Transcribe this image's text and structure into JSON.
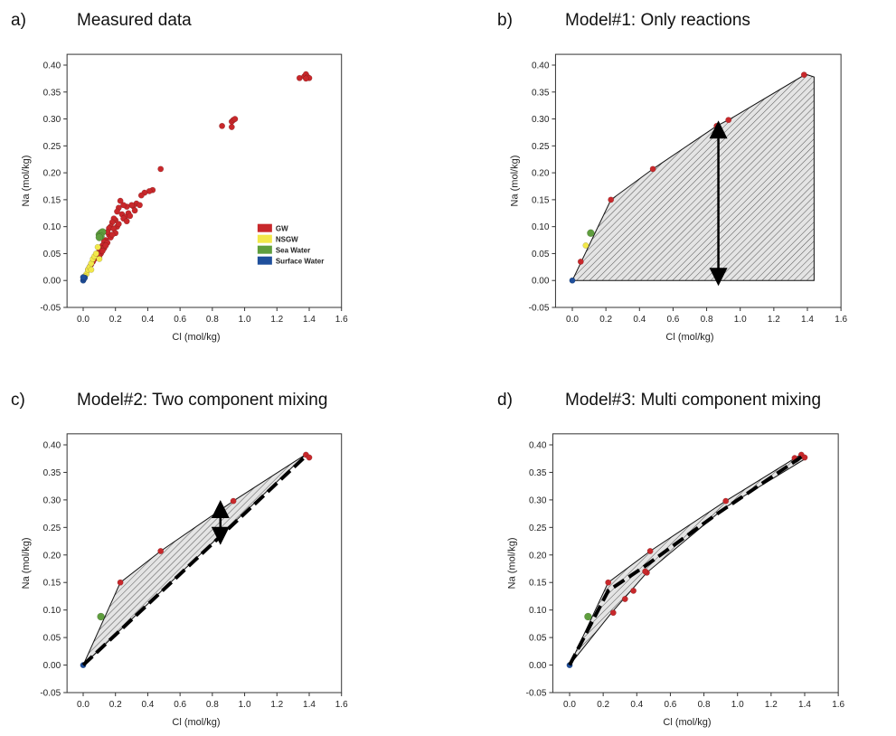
{
  "colors": {
    "GW": "#c8282b",
    "NSGW": "#f2e84a",
    "Sea Water": "#5f9e3e",
    "Surface Water": "#1f4f9c"
  },
  "chart_data": [
    {
      "id": "a",
      "type": "scatter",
      "letter": "a)",
      "title": "Measured data",
      "xlabel": "Cl (mol/kg)",
      "ylabel": "Na (mol/kg)",
      "xlim": [
        -0.1,
        1.6
      ],
      "ylim": [
        -0.05,
        0.42
      ],
      "xticks": [
        "0.0",
        "0.2",
        "0.4",
        "0.6",
        "0.8",
        "1.0",
        "1.2",
        "1.4",
        "1.6"
      ],
      "yticks": [
        "-0.05",
        "0.00",
        "0.05",
        "0.10",
        "0.15",
        "0.20",
        "0.25",
        "0.30",
        "0.35",
        "0.40"
      ],
      "legend_position": "right",
      "legend": [
        "GW",
        "NSGW",
        "Sea Water",
        "Surface Water"
      ],
      "series": [
        {
          "name": "GW",
          "points": [
            [
              1.34,
              0.376
            ],
            [
              1.37,
              0.379
            ],
            [
              1.38,
              0.383
            ],
            [
              1.39,
              0.378
            ],
            [
              1.4,
              0.376
            ],
            [
              1.38,
              0.375
            ],
            [
              0.92,
              0.295
            ],
            [
              0.93,
              0.298
            ],
            [
              0.94,
              0.3
            ],
            [
              0.92,
              0.285
            ],
            [
              0.86,
              0.287
            ],
            [
              0.48,
              0.207
            ],
            [
              0.43,
              0.168
            ],
            [
              0.41,
              0.166
            ],
            [
              0.38,
              0.163
            ],
            [
              0.36,
              0.158
            ],
            [
              0.33,
              0.143
            ],
            [
              0.31,
              0.138
            ],
            [
              0.3,
              0.14
            ],
            [
              0.27,
              0.137
            ],
            [
              0.25,
              0.14
            ],
            [
              0.23,
              0.148
            ],
            [
              0.22,
              0.135
            ],
            [
              0.21,
              0.128
            ],
            [
              0.2,
              0.112
            ],
            [
              0.19,
              0.115
            ],
            [
              0.18,
              0.108
            ],
            [
              0.17,
              0.1
            ],
            [
              0.16,
              0.097
            ],
            [
              0.16,
              0.085
            ],
            [
              0.15,
              0.09
            ],
            [
              0.14,
              0.075
            ],
            [
              0.13,
              0.072
            ],
            [
              0.12,
              0.065
            ],
            [
              0.11,
              0.06
            ],
            [
              0.1,
              0.055
            ],
            [
              0.09,
              0.05
            ],
            [
              0.08,
              0.045
            ],
            [
              0.07,
              0.04
            ],
            [
              0.06,
              0.035
            ],
            [
              0.05,
              0.03
            ],
            [
              0.04,
              0.025
            ],
            [
              0.03,
              0.02
            ],
            [
              0.28,
              0.125
            ],
            [
              0.32,
              0.13
            ],
            [
              0.24,
              0.123
            ],
            [
              0.26,
              0.118
            ],
            [
              0.29,
              0.12
            ],
            [
              0.35,
              0.14
            ],
            [
              0.21,
              0.1
            ],
            [
              0.19,
              0.096
            ],
            [
              0.22,
              0.105
            ],
            [
              0.17,
              0.08
            ],
            [
              0.15,
              0.07
            ],
            [
              0.13,
              0.06
            ],
            [
              0.11,
              0.05
            ],
            [
              0.25,
              0.115
            ],
            [
              0.27,
              0.11
            ],
            [
              0.2,
              0.088
            ],
            [
              0.18,
              0.085
            ],
            [
              0.14,
              0.065
            ],
            [
              0.12,
              0.055
            ],
            [
              0.1,
              0.045
            ]
          ]
        },
        {
          "name": "NSGW",
          "points": [
            [
              0.02,
              0.012
            ],
            [
              0.03,
              0.02
            ],
            [
              0.04,
              0.025
            ],
            [
              0.05,
              0.032
            ],
            [
              0.06,
              0.04
            ],
            [
              0.07,
              0.045
            ],
            [
              0.09,
              0.062
            ],
            [
              0.05,
              0.02
            ],
            [
              0.01,
              0.008
            ],
            [
              0.1,
              0.04
            ],
            [
              0.08,
              0.05
            ]
          ]
        },
        {
          "name": "Sea Water",
          "points": [
            [
              0.1,
              0.085
            ],
            [
              0.11,
              0.088
            ],
            [
              0.12,
              0.09
            ],
            [
              0.11,
              0.082
            ],
            [
              0.1,
              0.08
            ]
          ]
        },
        {
          "name": "Surface Water",
          "points": [
            [
              0.0,
              0.0
            ],
            [
              0.005,
              0.003
            ],
            [
              0.01,
              0.005
            ],
            [
              0.0,
              0.006
            ]
          ]
        }
      ]
    },
    {
      "id": "b",
      "type": "scatter",
      "letter": "b)",
      "title": "Model#1: Only reactions",
      "xlabel": "Cl (mol/kg)",
      "ylabel": "Na (mol/kg)",
      "xlim": [
        -0.1,
        1.6
      ],
      "ylim": [
        -0.05,
        0.42
      ],
      "xticks": [
        "0.0",
        "0.2",
        "0.4",
        "0.6",
        "0.8",
        "1.0",
        "1.2",
        "1.4",
        "1.6"
      ],
      "yticks": [
        "-0.05",
        "0.00",
        "0.05",
        "0.10",
        "0.15",
        "0.20",
        "0.25",
        "0.30",
        "0.35",
        "0.40"
      ],
      "envelope": [
        [
          0,
          0
        ],
        [
          0.23,
          0.15
        ],
        [
          0.48,
          0.207
        ],
        [
          0.86,
          0.287
        ],
        [
          0.94,
          0.3
        ],
        [
          1.39,
          0.383
        ],
        [
          1.44,
          0.378
        ],
        [
          1.44,
          0.0
        ]
      ],
      "arrow": {
        "x": 0.87,
        "y1": 0.0,
        "y2": 0.287
      },
      "series": [
        {
          "name": "GW",
          "points": [
            [
              1.38,
              0.382
            ],
            [
              0.86,
              0.287
            ],
            [
              0.48,
              0.207
            ],
            [
              0.23,
              0.15
            ],
            [
              0.05,
              0.035
            ],
            [
              0.93,
              0.298
            ]
          ]
        },
        {
          "name": "Sea Water",
          "points": [
            [
              0.11,
              0.088
            ]
          ]
        },
        {
          "name": "NSGW",
          "points": [
            [
              0.08,
              0.065
            ]
          ]
        },
        {
          "name": "Surface Water",
          "points": [
            [
              0.0,
              0.0
            ]
          ]
        }
      ]
    },
    {
      "id": "c",
      "type": "scatter",
      "letter": "c)",
      "title": "Model#2: Two component mixing",
      "xlabel": "Cl (mol/kg)",
      "ylabel": "Na (mol/kg)",
      "xlim": [
        -0.1,
        1.6
      ],
      "ylim": [
        -0.05,
        0.42
      ],
      "xticks": [
        "0.0",
        "0.2",
        "0.4",
        "0.6",
        "0.8",
        "1.0",
        "1.2",
        "1.4",
        "1.6"
      ],
      "yticks": [
        "-0.05",
        "0.00",
        "0.05",
        "0.10",
        "0.15",
        "0.20",
        "0.25",
        "0.30",
        "0.35",
        "0.40"
      ],
      "envelope": [
        [
          0,
          0
        ],
        [
          0.23,
          0.15
        ],
        [
          0.48,
          0.207
        ],
        [
          0.93,
          0.298
        ],
        [
          1.38,
          0.383
        ],
        [
          0,
          0
        ]
      ],
      "mixing_line": [
        [
          0,
          0
        ],
        [
          1.38,
          0.38
        ]
      ],
      "arrow": {
        "x": 0.85,
        "y1": 0.228,
        "y2": 0.29
      },
      "series": [
        {
          "name": "GW",
          "points": [
            [
              1.38,
              0.382
            ],
            [
              1.4,
              0.377
            ],
            [
              0.93,
              0.298
            ],
            [
              0.48,
              0.207
            ],
            [
              0.23,
              0.15
            ]
          ]
        },
        {
          "name": "Sea Water",
          "points": [
            [
              0.11,
              0.088
            ]
          ]
        },
        {
          "name": "Surface Water",
          "points": [
            [
              0.0,
              0.0
            ]
          ]
        }
      ]
    },
    {
      "id": "d",
      "type": "scatter",
      "letter": "d)",
      "title": "Model#3: Multi component mixing",
      "xlabel": "Cl (mol/kg)",
      "ylabel": "Na (mol/kg)",
      "xlim": [
        -0.1,
        1.6
      ],
      "ylim": [
        -0.05,
        0.42
      ],
      "xticks": [
        "0.0",
        "0.2",
        "0.4",
        "0.6",
        "0.8",
        "1.0",
        "1.2",
        "1.4",
        "1.6"
      ],
      "yticks": [
        "-0.05",
        "0.00",
        "0.05",
        "0.10",
        "0.15",
        "0.20",
        "0.25",
        "0.30",
        "0.35",
        "0.40"
      ],
      "envelope": [
        [
          0,
          0
        ],
        [
          0.23,
          0.15
        ],
        [
          0.48,
          0.207
        ],
        [
          0.93,
          0.298
        ],
        [
          1.38,
          0.383
        ],
        [
          1.41,
          0.376
        ],
        [
          0.92,
          0.285
        ],
        [
          0.46,
          0.168
        ],
        [
          0.25,
          0.095
        ],
        [
          0,
          0
        ]
      ],
      "mixing_line": [
        [
          0,
          0
        ],
        [
          0.23,
          0.135
        ],
        [
          0.45,
          0.18
        ],
        [
          0.88,
          0.275
        ],
        [
          1.38,
          0.378
        ]
      ],
      "series": [
        {
          "name": "GW",
          "points": [
            [
              1.38,
              0.382
            ],
            [
              1.4,
              0.377
            ],
            [
              1.34,
              0.376
            ],
            [
              0.93,
              0.298
            ],
            [
              0.48,
              0.207
            ],
            [
              0.46,
              0.168
            ],
            [
              0.45,
              0.17
            ],
            [
              0.38,
              0.135
            ],
            [
              0.33,
              0.12
            ],
            [
              0.26,
              0.095
            ],
            [
              0.23,
              0.15
            ]
          ]
        },
        {
          "name": "Sea Water",
          "points": [
            [
              0.11,
              0.088
            ]
          ]
        },
        {
          "name": "Surface Water",
          "points": [
            [
              0.0,
              0.0
            ]
          ]
        }
      ]
    }
  ]
}
